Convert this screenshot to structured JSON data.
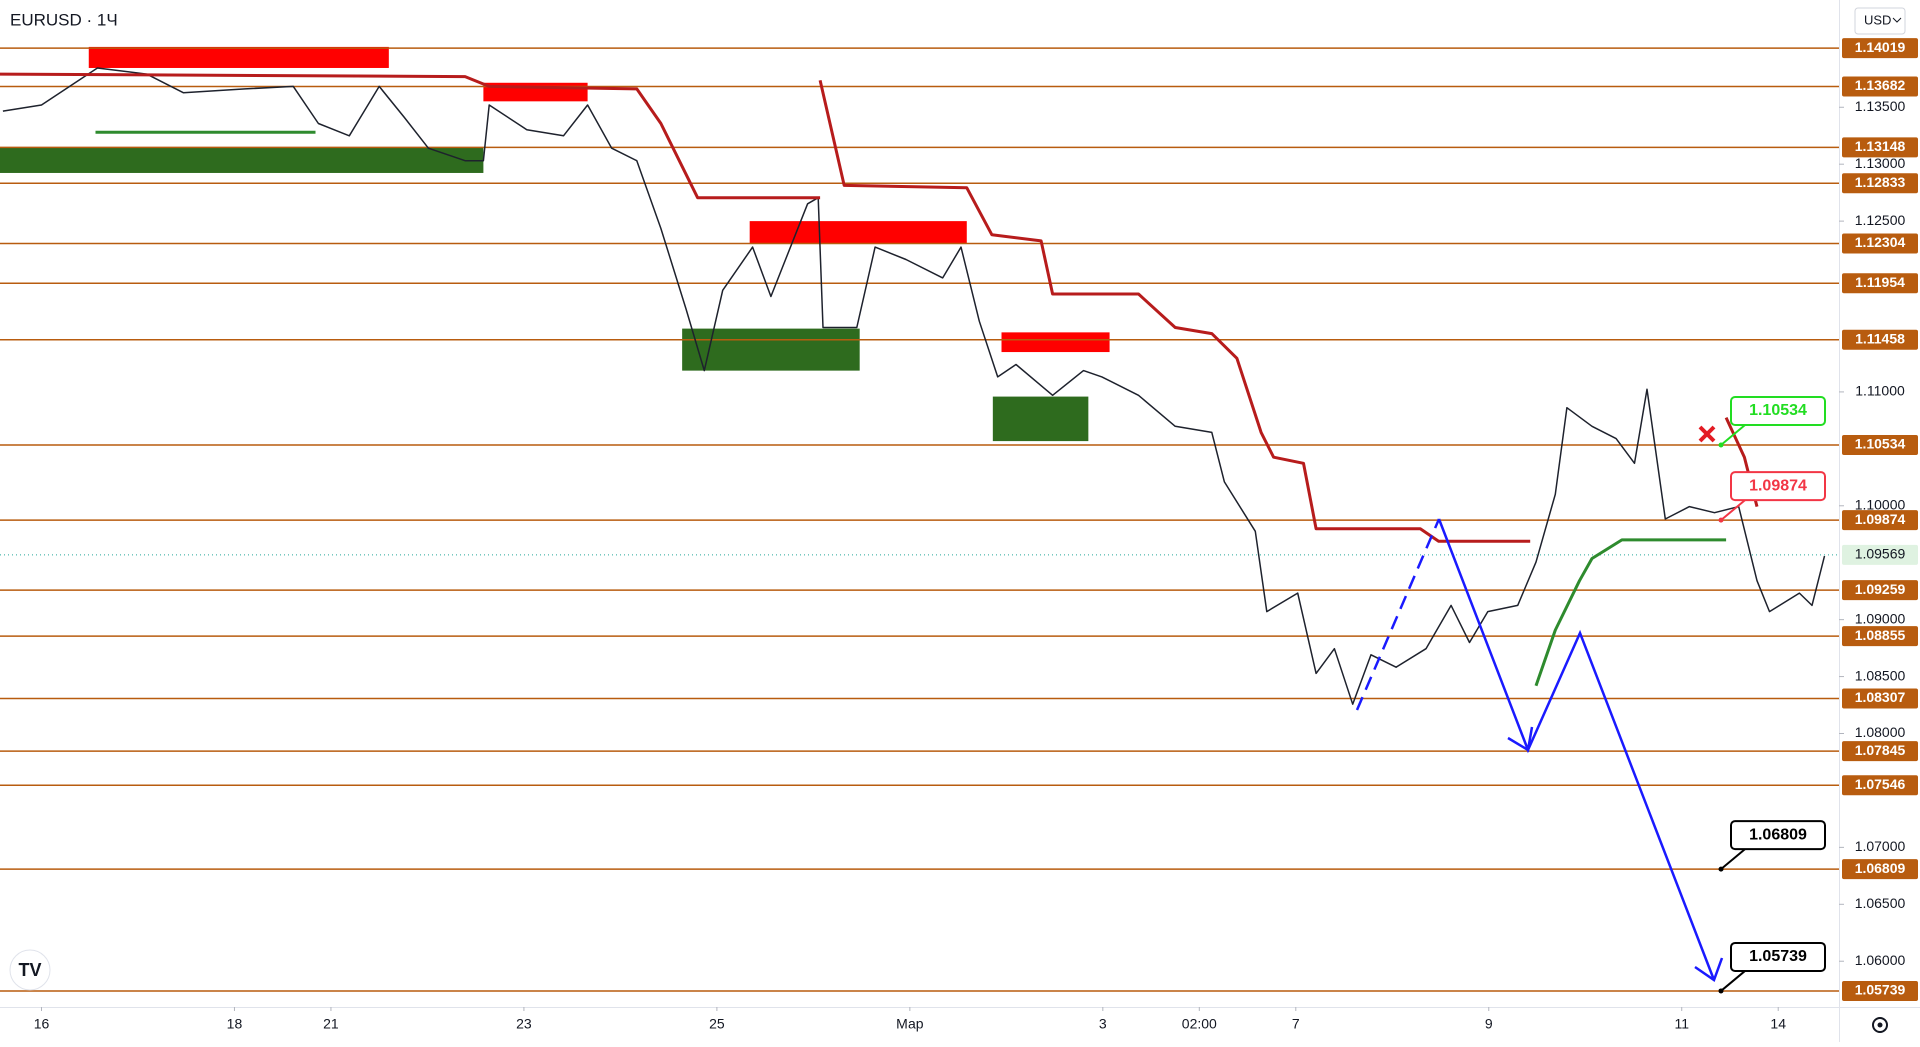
{
  "header": {
    "symbol": "EURUSD · 1Ч",
    "currency": "USD"
  },
  "chart_data": {
    "type": "line",
    "xlim": [
      -0.43,
      18.63
    ],
    "ylim": [
      1.05598,
      1.14442
    ],
    "xticks": [
      {
        "value": 0,
        "label": "16"
      },
      {
        "value": 2,
        "label": "18"
      },
      {
        "value": 3,
        "label": "21"
      },
      {
        "value": 5,
        "label": "23"
      },
      {
        "value": 7,
        "label": "25"
      },
      {
        "value": 9,
        "label": "Мар"
      },
      {
        "value": 11,
        "label": "3"
      },
      {
        "value": 12,
        "label": "02:00"
      },
      {
        "value": 13,
        "label": "7"
      },
      {
        "value": 15,
        "label": "9"
      },
      {
        "value": 17,
        "label": "11"
      },
      {
        "value": 18,
        "label": "14"
      }
    ],
    "yticks": [
      {
        "value": 1.135,
        "label": "1.13500"
      },
      {
        "value": 1.13,
        "label": "1.13000"
      },
      {
        "value": 1.125,
        "label": "1.12500"
      },
      {
        "value": 1.11,
        "label": "1.11000"
      },
      {
        "value": 1.1,
        "label": "1.10000"
      },
      {
        "value": 1.09,
        "label": "1.09000"
      },
      {
        "value": 1.085,
        "label": "1.08500"
      },
      {
        "value": 1.08,
        "label": "1.08000"
      },
      {
        "value": 1.07,
        "label": "1.07000"
      },
      {
        "value": 1.065,
        "label": "1.06500"
      },
      {
        "value": 1.06,
        "label": "1.06000"
      }
    ],
    "levels": [
      1.14019,
      1.13682,
      1.13148,
      1.12833,
      1.12304,
      1.11954,
      1.11458,
      1.10534,
      1.09874,
      1.09259,
      1.08855,
      1.08307,
      1.07845,
      1.07546,
      1.06809,
      1.05739
    ],
    "level_color": "#b85c0f",
    "last_price": 1.09569,
    "series": [
      {
        "color": "#1e222d",
        "x": [
          -0.4,
          0,
          0.58,
          1.09,
          1.47,
          2.11,
          2.61,
          2.87,
          3.19,
          3.5,
          3.76,
          4.01,
          4.39,
          4.58,
          4.64,
          5.03,
          5.41,
          5.66,
          5.91,
          6.17,
          6.42,
          6.68,
          6.87,
          7.06,
          7.37,
          7.56,
          7.94,
          8.05,
          8.1,
          8.45,
          8.64,
          8.96,
          9.34,
          9.53,
          9.72,
          9.91,
          10.1,
          10.48,
          10.8,
          10.99,
          11.37,
          11.75,
          12.13,
          12.26,
          12.58,
          12.7,
          13.02,
          13.21,
          13.4,
          13.59,
          13.78,
          14.04,
          14.35,
          14.61,
          14.8,
          14.99,
          15.3,
          15.49,
          15.69,
          15.81,
          16.07,
          16.32,
          16.51,
          16.64,
          16.83,
          17.08,
          17.34,
          17.59,
          17.78,
          17.91,
          18.22,
          18.35,
          18.48
        ],
        "values": [
          1.13466,
          1.1352,
          1.13845,
          1.13791,
          1.13628,
          1.13661,
          1.13683,
          1.13357,
          1.13249,
          1.13683,
          1.13411,
          1.1314,
          1.13031,
          1.13031,
          1.1352,
          1.13303,
          1.13249,
          1.1352,
          1.1314,
          1.13031,
          1.12435,
          1.11729,
          1.11187,
          1.11892,
          1.12272,
          1.11838,
          1.12652,
          1.12706,
          1.11566,
          1.11566,
          1.12272,
          1.12163,
          1.12001,
          1.12272,
          1.11621,
          1.11132,
          1.11241,
          1.1097,
          1.11187,
          1.11132,
          1.1097,
          1.10698,
          1.10644,
          1.1021,
          1.09776,
          1.09071,
          1.09233,
          1.08528,
          1.08745,
          1.08257,
          1.08691,
          1.08582,
          1.08745,
          1.09125,
          1.08799,
          1.09071,
          1.09125,
          1.09505,
          1.10101,
          1.10861,
          1.10698,
          1.1059,
          1.10373,
          1.11024,
          1.09884,
          1.09993,
          1.09939,
          1.09993,
          1.09342,
          1.09071,
          1.09233,
          1.09125,
          1.09559
        ]
      },
      {
        "color": "#b71c1c",
        "x": [
          -0.43,
          4.39,
          4.64,
          6.17,
          6.42,
          6.8,
          8.07,
          null,
          8.07,
          8.32,
          9.59,
          9.85,
          10.36,
          10.48,
          11.37,
          11.75,
          12.13,
          12.39,
          12.64,
          12.77,
          13.08,
          13.21,
          14.29,
          14.48,
          15.43,
          null,
          17.46,
          17.65,
          17.78
        ],
        "values": [
          1.13791,
          1.13769,
          1.13683,
          1.13661,
          1.13357,
          1.12706,
          1.12706,
          null,
          1.13737,
          1.12814,
          1.12793,
          1.1238,
          1.12326,
          1.1186,
          1.1186,
          1.11566,
          1.11512,
          1.11295,
          1.10644,
          1.10427,
          1.10373,
          1.09798,
          1.09798,
          1.09689,
          1.09689,
          null,
          1.10774,
          1.10427,
          1.09993
        ]
      },
      {
        "color": "#2e8b2e",
        "x": [
          0.56,
          2.84,
          null,
          15.49,
          15.69,
          15.94,
          16.07,
          16.38,
          17.46
        ],
        "values": [
          1.13281,
          1.13281,
          null,
          1.08419,
          1.08908,
          1.09342,
          1.09537,
          1.097,
          1.097
        ]
      }
    ],
    "zones": [
      {
        "color": "#ff0000",
        "x": [
          0.49,
          3.6
        ],
        "values": [
          1.13845,
          1.1403
        ]
      },
      {
        "color": "#ff0000",
        "x": [
          4.58,
          5.66
        ],
        "values": [
          1.13552,
          1.13715
        ]
      },
      {
        "color": "#2e6b1e",
        "x": [
          -0.43,
          4.58
        ],
        "values": [
          1.12923,
          1.13151
        ]
      },
      {
        "color": "#ff0000",
        "x": [
          7.34,
          9.59
        ],
        "values": [
          1.12304,
          1.125
        ]
      },
      {
        "color": "#2e6b1e",
        "x": [
          6.64,
          8.48
        ],
        "values": [
          1.11187,
          1.11556
        ]
      },
      {
        "color": "#ff0000",
        "x": [
          9.95,
          11.07
        ],
        "values": [
          1.1135,
          1.11523
        ]
      },
      {
        "color": "#2e6b1e",
        "x": [
          9.86,
          10.85
        ],
        "values": [
          1.10568,
          1.10959
        ]
      }
    ],
    "annotations": [
      {
        "value": 1.10534,
        "color": "#22dd22"
      },
      {
        "value": 1.09874,
        "color": "#f23645"
      },
      {
        "value": 1.06809,
        "color": "#000000"
      },
      {
        "value": 1.05739,
        "color": "#000000"
      }
    ]
  }
}
